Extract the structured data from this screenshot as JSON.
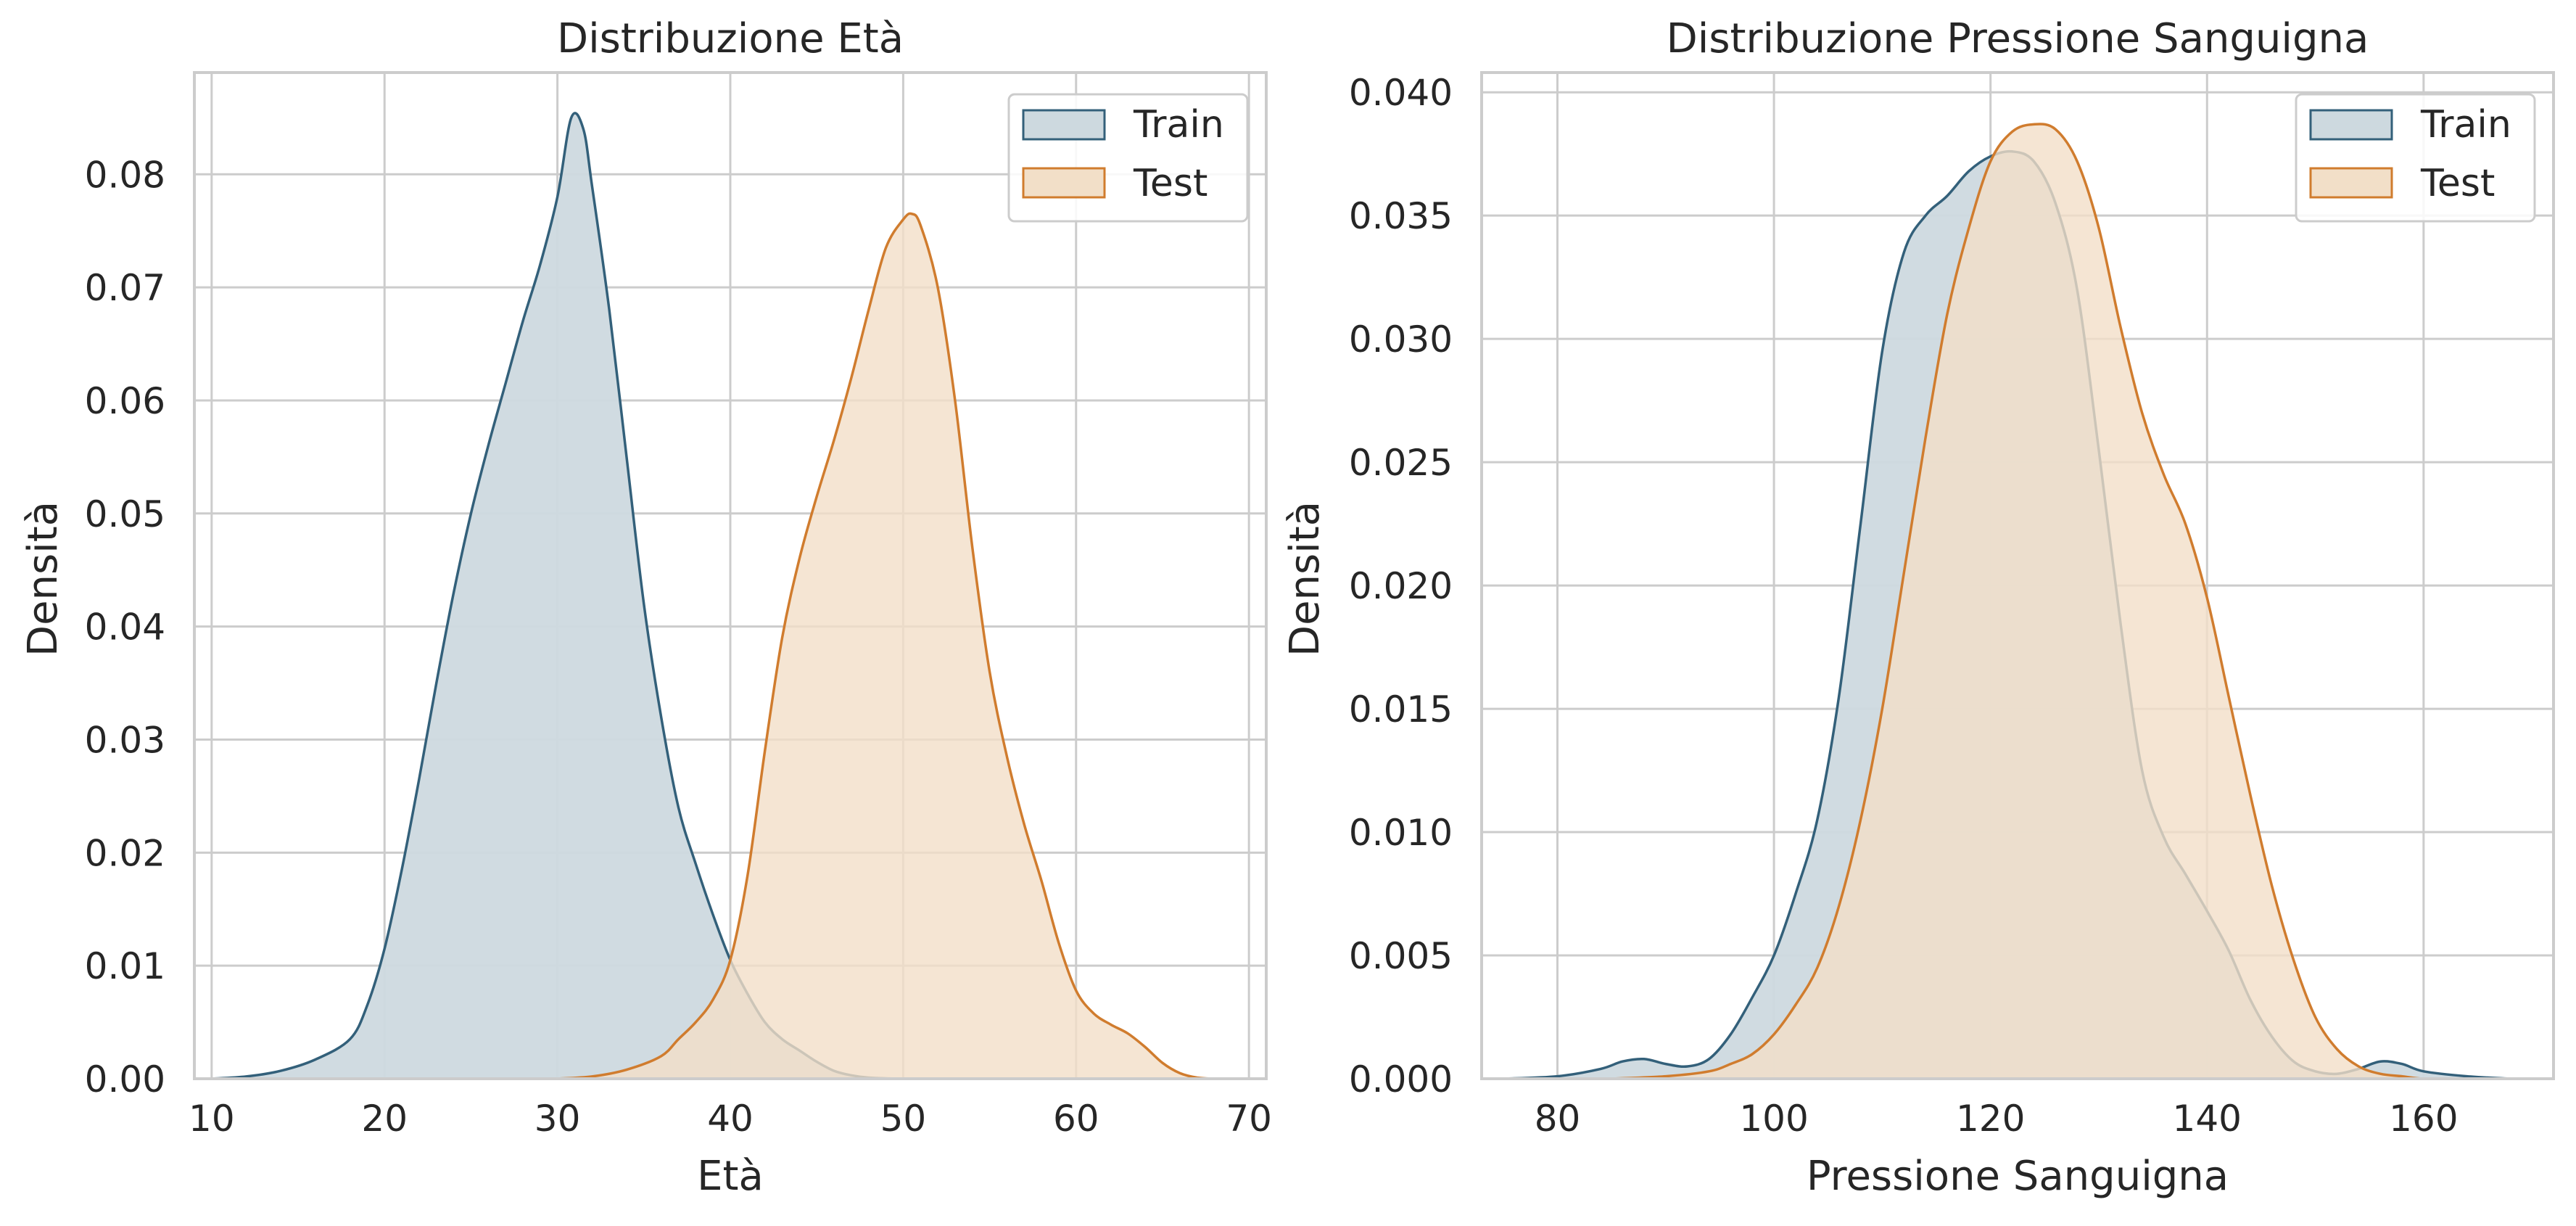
{
  "colors": {
    "train_line": "#33607a",
    "train_fill": "#cdd9df",
    "test_line": "#d07c2e",
    "test_fill": "#f2dfc8",
    "grid": "#cccccc",
    "spine": "#cccccc",
    "background": "#ffffff"
  },
  "chart_data": [
    {
      "type": "area",
      "title": "Distribuzione Età",
      "xlabel": "Età",
      "ylabel": "Densità",
      "xlim": [
        9,
        71
      ],
      "ylim": [
        0,
        0.089
      ],
      "xticks": [
        10,
        20,
        30,
        40,
        50,
        60,
        70
      ],
      "xtick_labels": [
        "10",
        "20",
        "30",
        "40",
        "50",
        "60",
        "70"
      ],
      "yticks": [
        0,
        0.01,
        0.02,
        0.03,
        0.04,
        0.05,
        0.06,
        0.07,
        0.08
      ],
      "ytick_labels": [
        "0.00",
        "0.01",
        "0.02",
        "0.03",
        "0.04",
        "0.05",
        "0.06",
        "0.07",
        "0.08"
      ],
      "grid": true,
      "legend_position": "top-right",
      "legend": [
        "Train",
        "Test"
      ],
      "series": [
        {
          "name": "Train",
          "x": [
            10,
            12,
            14,
            16,
            18,
            19,
            20,
            21,
            22,
            23,
            24,
            25,
            26,
            27,
            28,
            29,
            30,
            30.8,
            31.5,
            32,
            33,
            34,
            35,
            36,
            37,
            38,
            39,
            40,
            41,
            42,
            43,
            44,
            45,
            46,
            47,
            48,
            50,
            52
          ],
          "y": [
            0,
            0.0002,
            0.0007,
            0.0017,
            0.0035,
            0.0065,
            0.0115,
            0.0185,
            0.0265,
            0.035,
            0.043,
            0.05,
            0.056,
            0.0615,
            0.067,
            0.072,
            0.078,
            0.085,
            0.084,
            0.079,
            0.068,
            0.055,
            0.042,
            0.032,
            0.024,
            0.019,
            0.0145,
            0.0105,
            0.0075,
            0.005,
            0.0035,
            0.0025,
            0.0015,
            0.0007,
            0.0003,
            0.0001,
            0,
            0
          ]
        },
        {
          "name": "Test",
          "x": [
            30,
            32,
            34,
            36,
            37,
            38,
            39,
            40,
            41,
            42,
            43,
            44,
            45,
            46,
            47,
            48,
            49,
            50,
            50.5,
            51,
            52,
            53,
            54,
            55,
            56,
            57,
            58,
            59,
            60,
            61,
            62,
            63,
            64,
            65,
            66,
            67,
            68
          ],
          "y": [
            0,
            0.0002,
            0.0008,
            0.002,
            0.0035,
            0.005,
            0.007,
            0.0105,
            0.018,
            0.029,
            0.039,
            0.046,
            0.0515,
            0.0565,
            0.062,
            0.068,
            0.0735,
            0.076,
            0.0765,
            0.0755,
            0.07,
            0.06,
            0.047,
            0.036,
            0.0285,
            0.0225,
            0.0175,
            0.012,
            0.0078,
            0.0058,
            0.0048,
            0.004,
            0.0028,
            0.0014,
            0.0005,
            0.0001,
            0
          ]
        }
      ]
    },
    {
      "type": "area",
      "title": "Distribuzione Pressione Sanguigna",
      "xlabel": "Pressione Sanguigna",
      "ylabel": "Densità",
      "xlim": [
        73,
        172
      ],
      "ylim": [
        0,
        0.0408
      ],
      "xticks": [
        80,
        100,
        120,
        140,
        160
      ],
      "xtick_labels": [
        "80",
        "100",
        "120",
        "140",
        "160"
      ],
      "yticks": [
        0,
        0.005,
        0.01,
        0.015,
        0.02,
        0.025,
        0.03,
        0.035,
        0.04
      ],
      "ytick_labels": [
        "0.000",
        "0.005",
        "0.010",
        "0.015",
        "0.020",
        "0.025",
        "0.030",
        "0.035",
        "0.040"
      ],
      "grid": true,
      "legend_position": "top-right",
      "legend": [
        "Train",
        "Test"
      ],
      "series": [
        {
          "name": "Train",
          "x": [
            75,
            80,
            84,
            86,
            88,
            90,
            92,
            94,
            96,
            98,
            100,
            102,
            104,
            106,
            108,
            110,
            112,
            114,
            116,
            118,
            120,
            122,
            124,
            126,
            128,
            130,
            132,
            134,
            136,
            138,
            140,
            142,
            144,
            146,
            148,
            150,
            152,
            154,
            156,
            158,
            160,
            164,
            168
          ],
          "y": [
            0,
            0.0001,
            0.0004,
            0.0007,
            0.0008,
            0.0006,
            0.0005,
            0.0008,
            0.0018,
            0.0033,
            0.005,
            0.0075,
            0.0105,
            0.0155,
            0.0225,
            0.0295,
            0.0335,
            0.035,
            0.0358,
            0.0368,
            0.0374,
            0.0376,
            0.0372,
            0.0355,
            0.032,
            0.0255,
            0.0185,
            0.0125,
            0.0098,
            0.0083,
            0.0068,
            0.0052,
            0.0032,
            0.0017,
            0.0007,
            0.0003,
            0.0002,
            0.0004,
            0.0007,
            0.0006,
            0.0003,
            0.0001,
            0
          ]
        },
        {
          "name": "Test",
          "x": [
            85,
            90,
            94,
            96,
            98,
            100,
            102,
            104,
            106,
            108,
            110,
            112,
            114,
            116,
            118,
            120,
            122,
            124,
            126,
            128,
            130,
            132,
            134,
            136,
            138,
            140,
            142,
            144,
            146,
            148,
            150,
            152,
            154,
            156,
            158,
            160,
            164
          ],
          "y": [
            0,
            0.0001,
            0.0003,
            0.0006,
            0.001,
            0.0018,
            0.003,
            0.0045,
            0.007,
            0.0105,
            0.015,
            0.0205,
            0.026,
            0.031,
            0.0345,
            0.0372,
            0.0384,
            0.0387,
            0.0385,
            0.0372,
            0.0345,
            0.0305,
            0.027,
            0.0245,
            0.0225,
            0.0195,
            0.0155,
            0.0115,
            0.0078,
            0.0048,
            0.0025,
            0.0012,
            0.0005,
            0.0002,
            0.0001,
            0,
            0
          ]
        }
      ]
    }
  ]
}
